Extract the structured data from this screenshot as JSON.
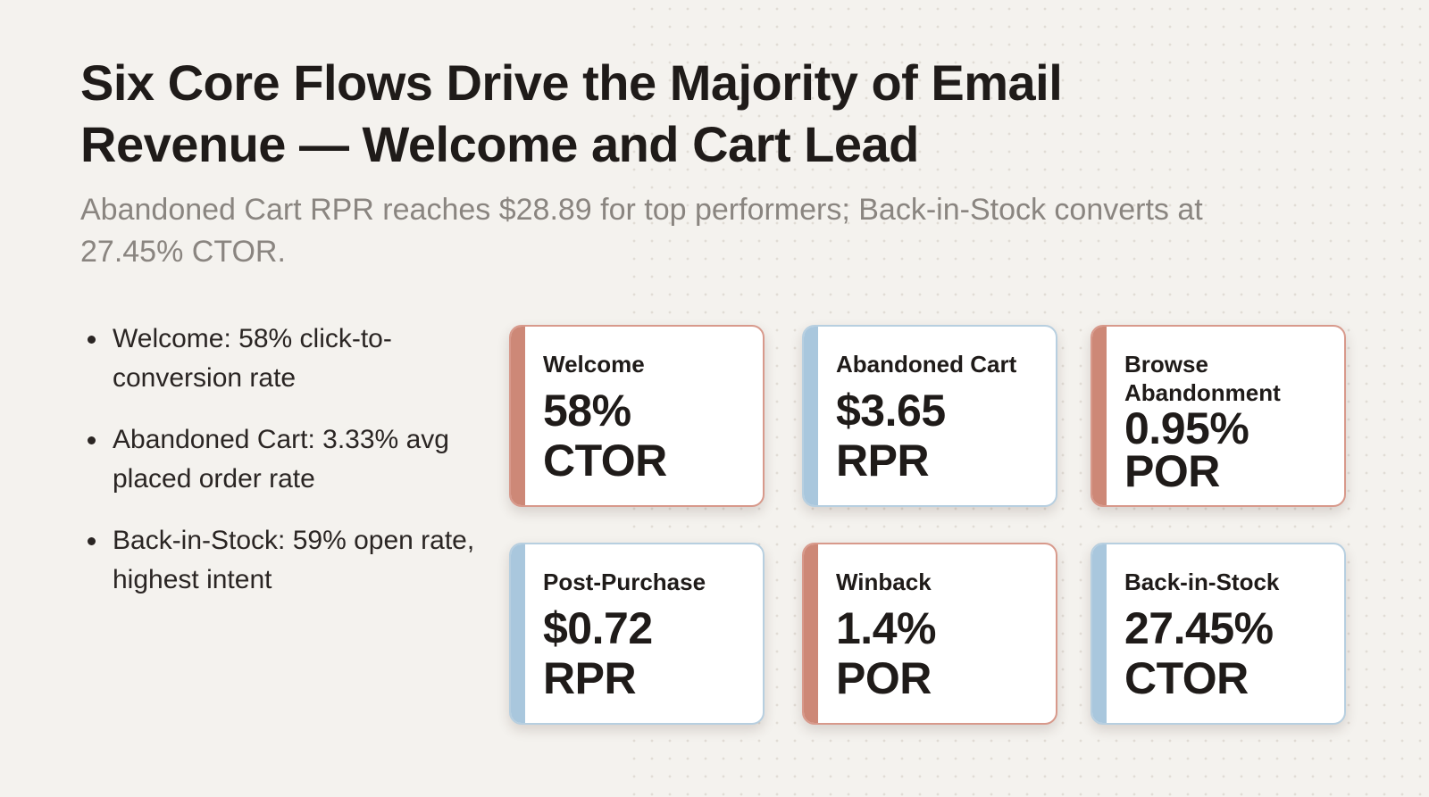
{
  "slide": {
    "title": "Six Core Flows Drive the Majority of Email Revenue — Welcome and Cart Lead",
    "subtitle": "Abandoned Cart RPR reaches $28.89 for top performers; Back-in-Stock converts at 27.45% CTOR."
  },
  "bullets": [
    "Welcome: 58% click-to-conversion rate",
    "Abandoned Cart: 3.33% avg placed order rate",
    "Back-in-Stock: 59% open rate, highest intent"
  ],
  "cards": [
    {
      "label": "Welcome",
      "value": "58%",
      "unit": "CTOR",
      "accent": "#cd8877"
    },
    {
      "label": "Abandoned Cart",
      "value": "$3.65",
      "unit": "RPR",
      "accent": "#a9c7dd"
    },
    {
      "label": "Browse Abandonment",
      "value": "0.95%",
      "unit": "POR",
      "accent": "#cd8877"
    },
    {
      "label": "Post-Purchase",
      "value": "$0.72",
      "unit": "RPR",
      "accent": "#a9c7dd"
    },
    {
      "label": "Winback",
      "value": "1.4%",
      "unit": "POR",
      "accent": "#cd8877"
    },
    {
      "label": "Back-in-Stock",
      "value": "27.45%",
      "unit": "CTOR",
      "accent": "#a9c7dd"
    }
  ]
}
